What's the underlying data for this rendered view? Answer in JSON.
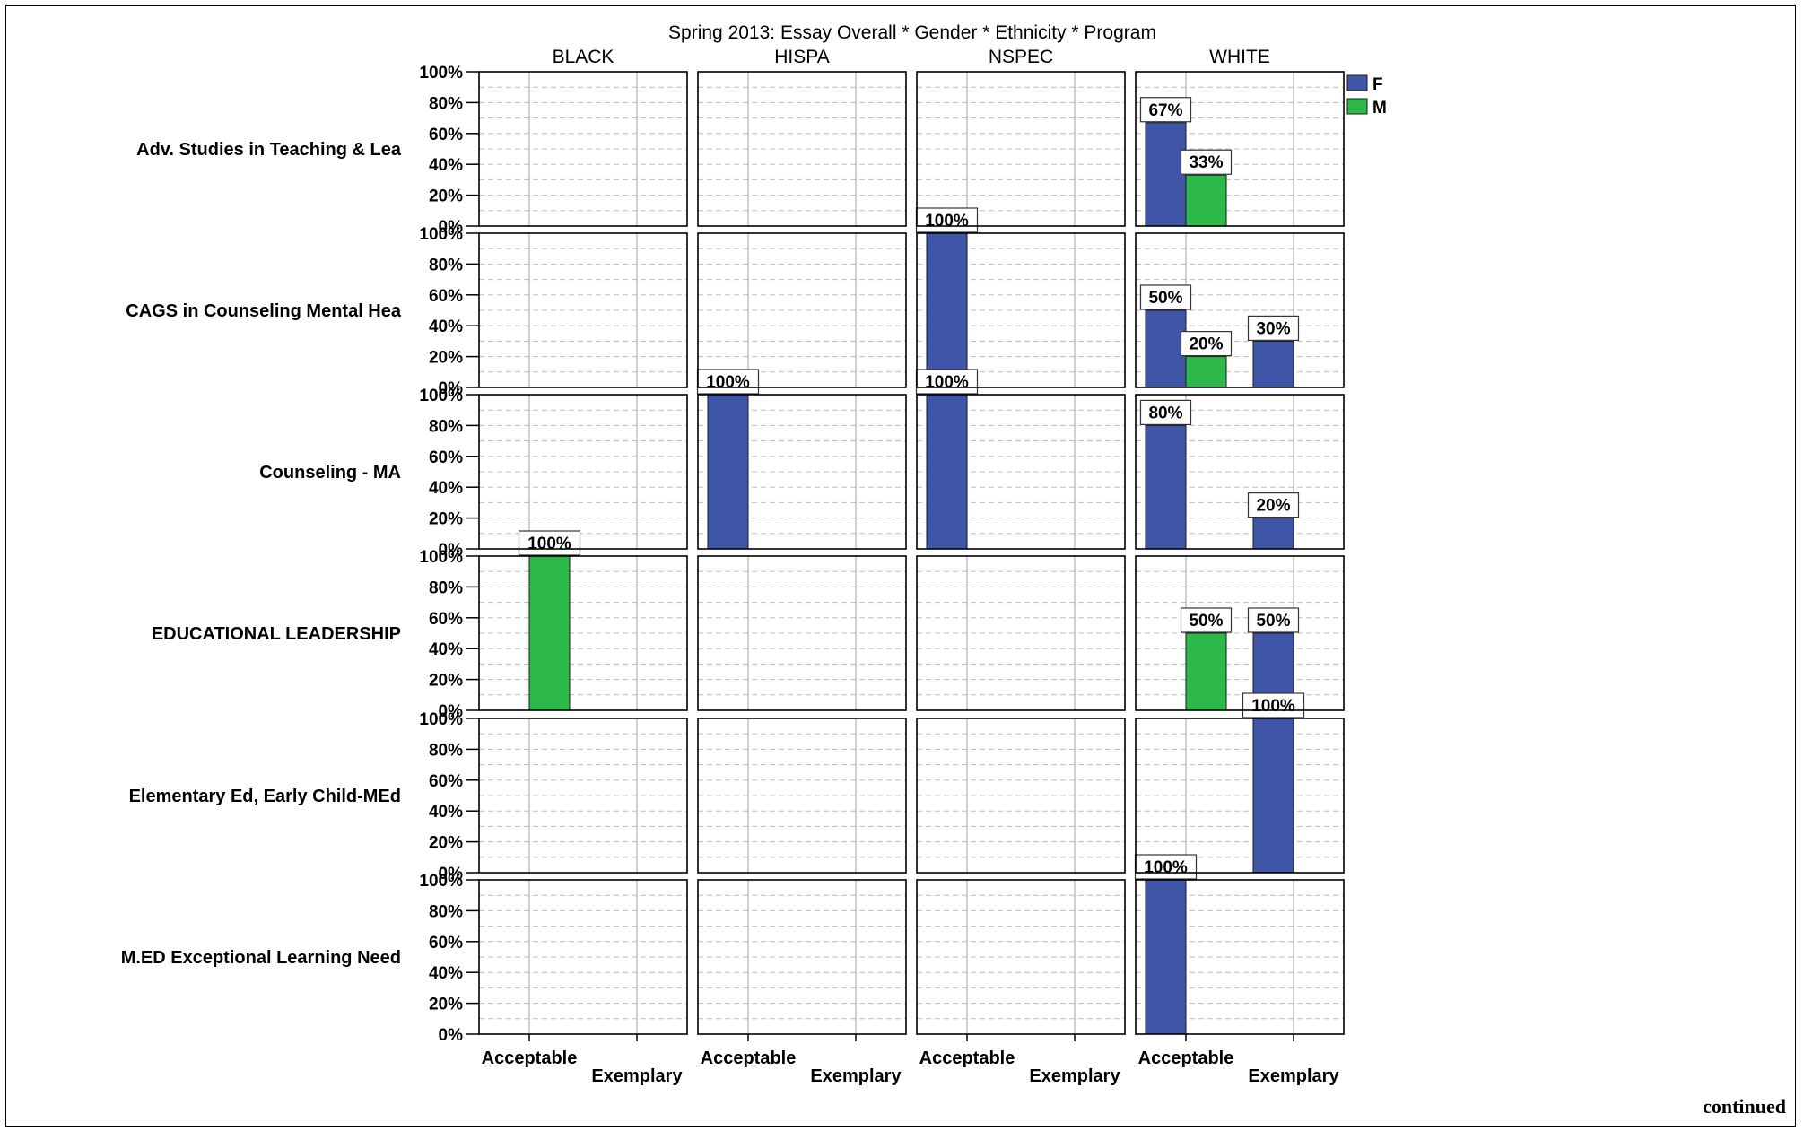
{
  "chart_data": {
    "type": "bar",
    "title": "Spring 2013: Essay Overall * Gender * Ethnicity * Program",
    "columns": [
      "BLACK",
      "HISPA",
      "NSPEC",
      "WHITE"
    ],
    "rows": [
      "Adv. Studies in Teaching & Lea",
      "CAGS in Counseling  Mental Hea",
      "Counseling - MA",
      "EDUCATIONAL LEADERSHIP",
      "Elementary Ed, Early Child-MEd",
      "M.ED Exceptional Learning Need"
    ],
    "categories": [
      "Acceptable",
      "Exemplary"
    ],
    "y_ticks": [
      "0%",
      "20%",
      "40%",
      "60%",
      "80%",
      "100%"
    ],
    "ylim": [
      0,
      100
    ],
    "grid": true,
    "legend": {
      "placement": "top-right",
      "entries": [
        {
          "name": "F",
          "color": "#3f56a8"
        },
        {
          "name": "M",
          "color": "#2db84a"
        }
      ]
    },
    "bars": [
      {
        "row": 0,
        "col": 3,
        "category": "Acceptable",
        "series": "F",
        "value": 67,
        "label": "67%"
      },
      {
        "row": 0,
        "col": 3,
        "category": "Acceptable",
        "series": "M",
        "value": 33,
        "label": "33%"
      },
      {
        "row": 1,
        "col": 2,
        "category": "Acceptable",
        "series": "F",
        "value": 100,
        "label": "100%"
      },
      {
        "row": 1,
        "col": 3,
        "category": "Acceptable",
        "series": "F",
        "value": 50,
        "label": "50%"
      },
      {
        "row": 1,
        "col": 3,
        "category": "Acceptable",
        "series": "M",
        "value": 20,
        "label": "20%"
      },
      {
        "row": 1,
        "col": 3,
        "category": "Exemplary",
        "series": "F",
        "value": 30,
        "label": "30%"
      },
      {
        "row": 2,
        "col": 1,
        "category": "Acceptable",
        "series": "F",
        "value": 100,
        "label": "100%"
      },
      {
        "row": 2,
        "col": 2,
        "category": "Acceptable",
        "series": "F",
        "value": 100,
        "label": "100%"
      },
      {
        "row": 2,
        "col": 3,
        "category": "Acceptable",
        "series": "F",
        "value": 80,
        "label": "80%"
      },
      {
        "row": 2,
        "col": 3,
        "category": "Exemplary",
        "series": "F",
        "value": 20,
        "label": "20%"
      },
      {
        "row": 3,
        "col": 0,
        "category": "Acceptable",
        "series": "M",
        "value": 100,
        "label": "100%"
      },
      {
        "row": 3,
        "col": 3,
        "category": "Acceptable",
        "series": "M",
        "value": 50,
        "label": "50%"
      },
      {
        "row": 3,
        "col": 3,
        "category": "Exemplary",
        "series": "F",
        "value": 50,
        "label": "50%"
      },
      {
        "row": 4,
        "col": 3,
        "category": "Exemplary",
        "series": "F",
        "value": 100,
        "label": "100%"
      },
      {
        "row": 5,
        "col": 3,
        "category": "Acceptable",
        "series": "F",
        "value": 100,
        "label": "100%"
      }
    ]
  },
  "footer": {
    "continued_label": "continued"
  }
}
